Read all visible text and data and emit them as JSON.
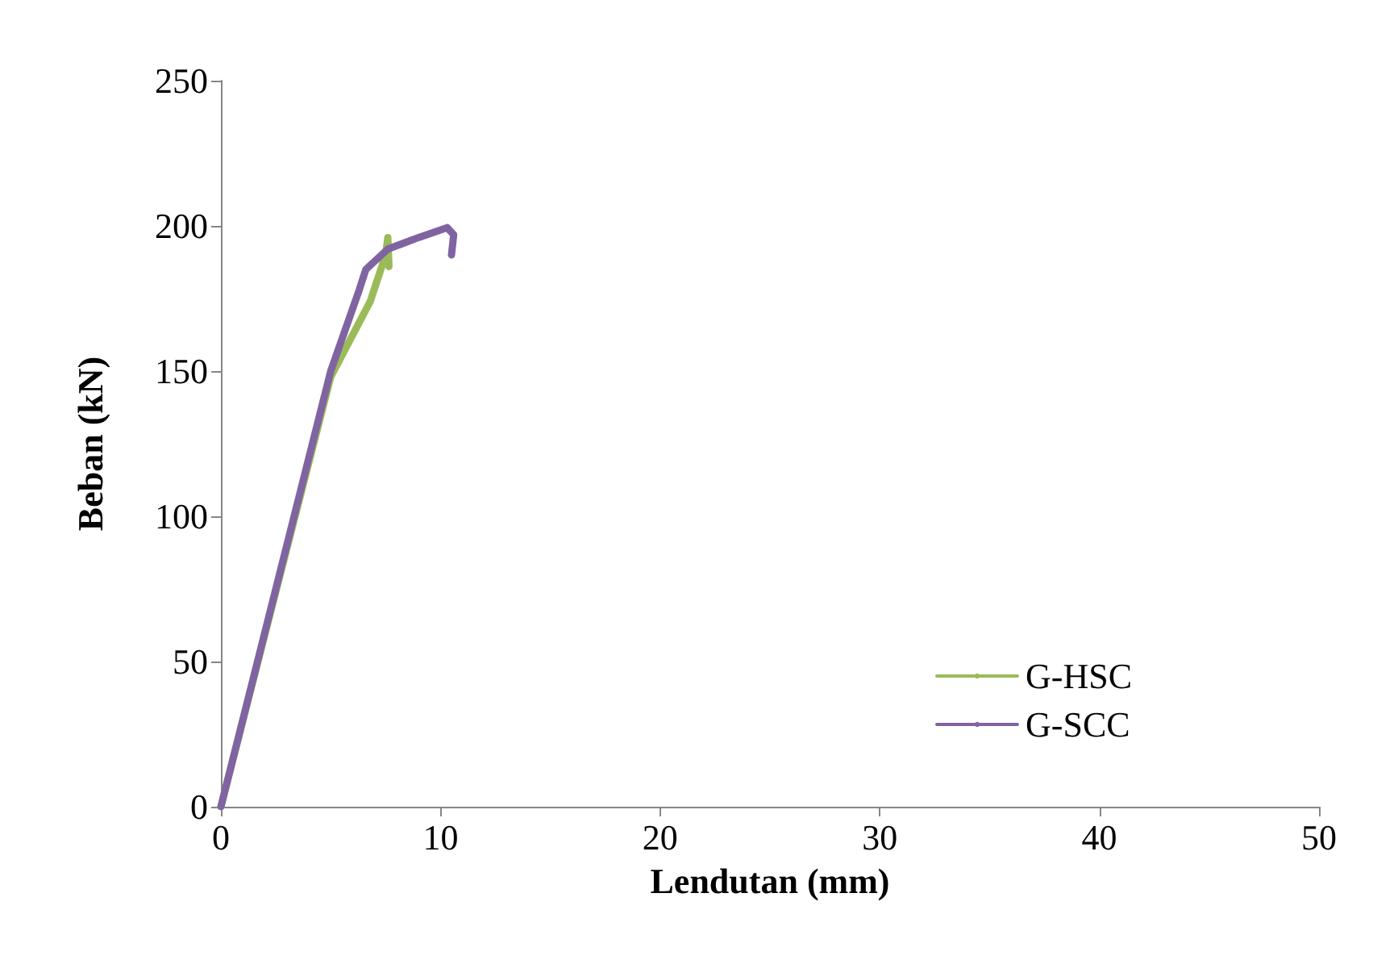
{
  "chart_data": {
    "type": "line",
    "xlabel": "Lendutan (mm)",
    "ylabel": "Beban (kN)",
    "xlim": [
      0,
      50
    ],
    "xticks": [
      0,
      10,
      20,
      30,
      40,
      50
    ],
    "ylim": [
      0,
      250
    ],
    "yticks": [
      0,
      50,
      100,
      150,
      200,
      250
    ],
    "grid": false,
    "legend": "bottom right",
    "marker": "none",
    "line_style": "solid",
    "series": [
      {
        "name": "G-HSC",
        "color": "#9bbb59",
        "x": [
          0,
          5,
          6.8,
          7.5,
          7.6,
          7.65
        ],
        "values": [
          0,
          148,
          174,
          190,
          196,
          186
        ]
      },
      {
        "name": "G-SCC",
        "color": "#8064a2",
        "x": [
          0,
          5,
          6.3,
          6.6,
          7.6,
          9,
          10.3,
          10.6,
          10.5
        ],
        "values": [
          0,
          150,
          178,
          185,
          192,
          196,
          199.4,
          197,
          190
        ]
      }
    ]
  }
}
